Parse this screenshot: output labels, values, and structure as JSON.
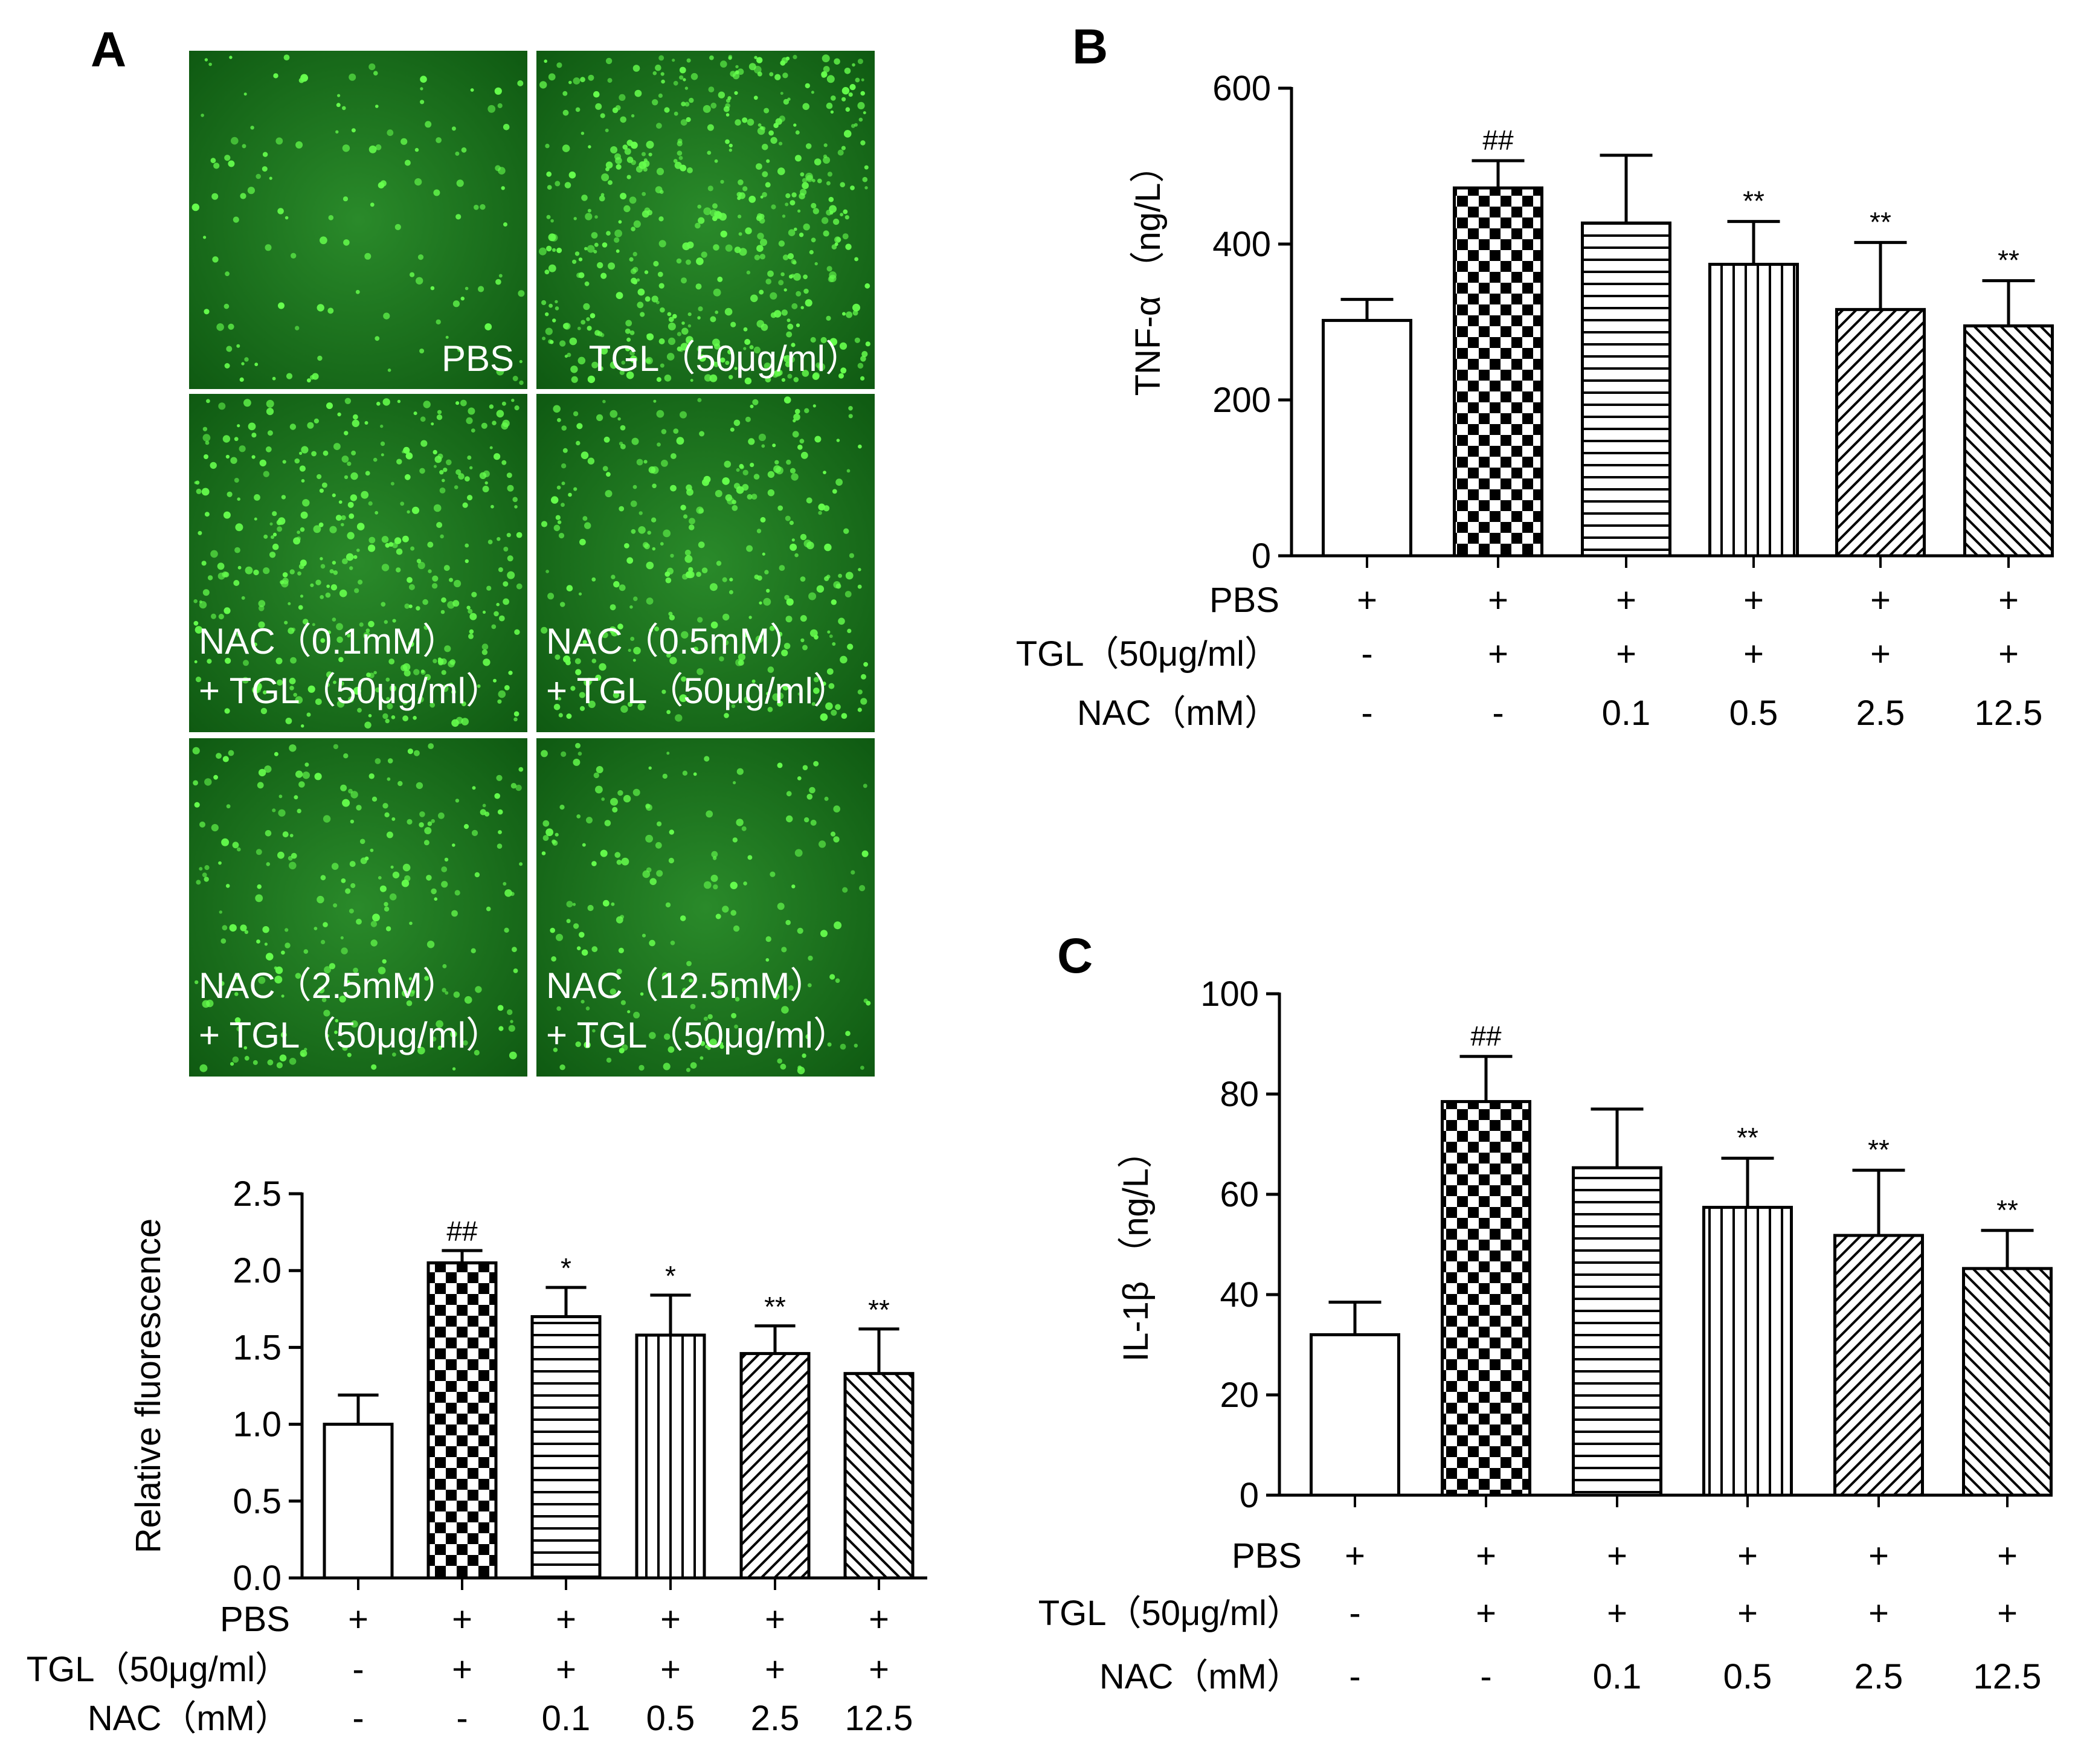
{
  "panels": {
    "A": "A",
    "B": "B",
    "C": "C"
  },
  "micrographs": [
    {
      "lines": [
        "PBS"
      ],
      "align": "right",
      "density": 0.25
    },
    {
      "lines": [
        "TGL（50μg/ml）"
      ],
      "align": "right",
      "density": 1.0
    },
    {
      "lines": [
        "NAC（0.1mM）",
        "+ TGL（50μg/ml）"
      ],
      "align": "left",
      "density": 0.75
    },
    {
      "lines": [
        "NAC（0.5mM）",
        "+ TGL（50μg/ml）"
      ],
      "align": "left",
      "density": 0.6
    },
    {
      "lines": [
        "NAC（2.5mM）",
        "+ TGL（50μg/ml）"
      ],
      "align": "left",
      "density": 0.45
    },
    {
      "lines": [
        "NAC（12.5mM）",
        "+ TGL（50μg/ml）"
      ],
      "align": "left",
      "density": 0.35
    }
  ],
  "colors": {
    "micrograph_bg": "#1e7a1e",
    "cell": "#66ff4d"
  },
  "conditions": {
    "row_labels": [
      "PBS",
      "TGL（50μg/ml）",
      "NAC（mM）"
    ],
    "rows": [
      [
        "+",
        "+",
        "+",
        "+",
        "+",
        "+"
      ],
      [
        "-",
        "+",
        "+",
        "+",
        "+",
        "+"
      ],
      [
        "-",
        "-",
        "0.1",
        "0.5",
        "2.5",
        "12.5"
      ]
    ]
  },
  "chart_data": [
    {
      "id": "A",
      "type": "bar",
      "ylabel": "Relative  fluorescence",
      "ylim": [
        0,
        2.5
      ],
      "yticks": [
        "0.0",
        "0.5",
        "1.0",
        "1.5",
        "2.0",
        "2.5"
      ],
      "ytick_values": [
        0,
        0.5,
        1.0,
        1.5,
        2.0,
        2.5
      ],
      "values": [
        1.0,
        2.05,
        1.7,
        1.58,
        1.46,
        1.33
      ],
      "errors": [
        0.19,
        0.08,
        0.19,
        0.26,
        0.18,
        0.29
      ],
      "significance": [
        "",
        "##",
        "*",
        "*",
        "**",
        "**"
      ],
      "patterns": [
        "empty",
        "checker",
        "hlines",
        "vlines",
        "diagup",
        "diagdown"
      ]
    },
    {
      "id": "B",
      "type": "bar",
      "ylabel": "TNF-α （ng/L）",
      "ylim": [
        0,
        600
      ],
      "yticks": [
        "0",
        "200",
        "400",
        "600"
      ],
      "ytick_values": [
        0,
        200,
        400,
        600
      ],
      "values": [
        302,
        472,
        427,
        374,
        316,
        295
      ],
      "errors": [
        27,
        35,
        87,
        55,
        86,
        58
      ],
      "significance": [
        "",
        "##",
        "",
        "**",
        "**",
        "**"
      ],
      "patterns": [
        "empty",
        "checker",
        "hlines",
        "vlines",
        "diagup",
        "diagdown"
      ]
    },
    {
      "id": "C",
      "type": "bar",
      "ylabel": "IL-1β （ng/L）",
      "ylim": [
        0,
        100
      ],
      "yticks": [
        "0",
        "20",
        "40",
        "60",
        "80",
        "100"
      ],
      "ytick_values": [
        0,
        20,
        40,
        60,
        80,
        100
      ],
      "values": [
        32,
        78.5,
        65.3,
        57.4,
        51.8,
        45.2
      ],
      "errors": [
        6.5,
        9,
        11.7,
        9.8,
        13,
        7.6
      ],
      "significance": [
        "",
        "##",
        "",
        "**",
        "**",
        "**"
      ],
      "patterns": [
        "empty",
        "checker",
        "hlines",
        "vlines",
        "diagup",
        "diagdown"
      ]
    }
  ]
}
